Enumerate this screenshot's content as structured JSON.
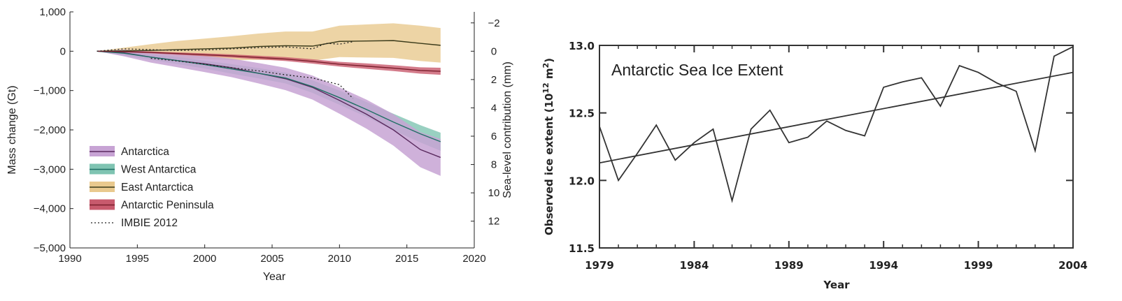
{
  "chart_data": [
    {
      "type": "line",
      "title": "",
      "xlabel": "Year",
      "ylabel": "Mass change (Gt)",
      "ylabel_right": "Sea-level contribution (mm)",
      "xlim": [
        1990,
        2020
      ],
      "ylim": [
        -5000,
        1000
      ],
      "x_ticks": [
        1990,
        1995,
        2000,
        2005,
        2010,
        2015,
        2020
      ],
      "y_ticks": [
        1000,
        0,
        -1000,
        -2000,
        -3000,
        -4000,
        -5000
      ],
      "x_tick_labels": [
        "1990",
        "1995",
        "2000",
        "2005",
        "2010",
        "2015",
        "2020"
      ],
      "y_tick_labels": [
        "1,000",
        "0",
        "−1,000",
        "−2,000",
        "−3,000",
        "−4,000",
        "−5,000"
      ],
      "right_ticks": [
        -2,
        0,
        2,
        4,
        6,
        8,
        10,
        12
      ],
      "right_tick_labels": [
        "−2",
        "0",
        "2",
        "4",
        "6",
        "8",
        "10",
        "12"
      ],
      "right_axis_gt_per_mm": -360,
      "grid": false,
      "legend_position": "bottom-left",
      "series": [
        {
          "name": "Antarctica",
          "color": "#5a2a5e",
          "band_color": "#c7a3d4",
          "x": [
            1992,
            1994,
            1996,
            1998,
            2000,
            2002,
            2004,
            2006,
            2008,
            2010,
            2012,
            2014,
            2016,
            2017.5
          ],
          "values": [
            0,
            -40,
            -150,
            -240,
            -320,
            -420,
            -560,
            -700,
            -920,
            -1250,
            -1600,
            -2000,
            -2500,
            -2700
          ],
          "band": [
            [
              0,
              0
            ],
            [
              40,
              -130
            ],
            [
              -10,
              -290
            ],
            [
              -70,
              -410
            ],
            [
              -120,
              -530
            ],
            [
              -190,
              -660
            ],
            [
              -300,
              -820
            ],
            [
              -420,
              -990
            ],
            [
              -620,
              -1230
            ],
            [
              -920,
              -1590
            ],
            [
              -1230,
              -1970
            ],
            [
              -1600,
              -2400
            ],
            [
              -2060,
              -2950
            ],
            [
              -2230,
              -3170
            ]
          ]
        },
        {
          "name": "West Antarctica",
          "color": "#1f6f64",
          "band_color": "#7fc4b2",
          "x": [
            1992,
            1994,
            1996,
            1998,
            2000,
            2002,
            2004,
            2006,
            2008,
            2010,
            2012,
            2014,
            2016,
            2017.5
          ],
          "values": [
            0,
            -50,
            -150,
            -240,
            -340,
            -450,
            -560,
            -680,
            -900,
            -1180,
            -1480,
            -1800,
            -2100,
            -2300
          ],
          "band": [
            [
              0,
              0
            ],
            [
              10,
              -110
            ],
            [
              -80,
              -220
            ],
            [
              -150,
              -330
            ],
            [
              -240,
              -440
            ],
            [
              -330,
              -570
            ],
            [
              -430,
              -690
            ],
            [
              -540,
              -820
            ],
            [
              -740,
              -1060
            ],
            [
              -1000,
              -1360
            ],
            [
              -1290,
              -1670
            ],
            [
              -1590,
              -2010
            ],
            [
              -1880,
              -2320
            ],
            [
              -2070,
              -2530
            ]
          ]
        },
        {
          "name": "East Antarctica",
          "color": "#3a3a1a",
          "band_color": "#e9c98e",
          "x": [
            1992,
            1994,
            1996,
            1998,
            2000,
            2002,
            2004,
            2006,
            2008,
            2010,
            2012,
            2014,
            2016,
            2017.5
          ],
          "values": [
            0,
            10,
            20,
            40,
            60,
            80,
            120,
            140,
            130,
            250,
            260,
            270,
            200,
            150
          ],
          "band": [
            [
              0,
              0
            ],
            [
              90,
              -70
            ],
            [
              180,
              -140
            ],
            [
              260,
              -180
            ],
            [
              320,
              -200
            ],
            [
              380,
              -230
            ],
            [
              450,
              -220
            ],
            [
              500,
              -220
            ],
            [
              500,
              -240
            ],
            [
              650,
              -150
            ],
            [
              680,
              -160
            ],
            [
              710,
              -170
            ],
            [
              650,
              -250
            ],
            [
              590,
              -290
            ]
          ]
        },
        {
          "name": "Antarctic Peninsula",
          "color": "#7a1e2c",
          "band_color": "#c85a6d",
          "x": [
            1992,
            1994,
            1996,
            1998,
            2000,
            2002,
            2004,
            2006,
            2008,
            2010,
            2012,
            2014,
            2016,
            2017.5
          ],
          "values": [
            0,
            -10,
            -30,
            -60,
            -90,
            -120,
            -160,
            -200,
            -260,
            -330,
            -380,
            -430,
            -490,
            -510
          ],
          "band": [
            [
              0,
              0
            ],
            [
              10,
              -30
            ],
            [
              -5,
              -55
            ],
            [
              -30,
              -90
            ],
            [
              -55,
              -125
            ],
            [
              -80,
              -160
            ],
            [
              -115,
              -205
            ],
            [
              -150,
              -250
            ],
            [
              -205,
              -315
            ],
            [
              -270,
              -390
            ],
            [
              -310,
              -450
            ],
            [
              -355,
              -505
            ],
            [
              -410,
              -570
            ],
            [
              -420,
              -600
            ]
          ]
        },
        {
          "name": "IMBIE 2012",
          "color": "#222222",
          "dash": "2,3",
          "x": [
            1992,
            1994,
            1996,
            1998,
            2000,
            2002,
            2004,
            2006,
            2008,
            2009,
            2010,
            2011
          ],
          "values": [
            0,
            60,
            40,
            20,
            30,
            60,
            90,
            110,
            60,
            200,
            180,
            240
          ]
        },
        {
          "name": "",
          "color": "#222222",
          "dash": "2,3",
          "legend": false,
          "x": [
            1996,
            1998,
            2000,
            2002,
            2004,
            2006,
            2008,
            2010,
            2011
          ],
          "values": [
            -180,
            -250,
            -330,
            -420,
            -500,
            -600,
            -680,
            -850,
            -1200
          ]
        }
      ]
    },
    {
      "type": "line",
      "title": "Antarctic Sea Ice Extent",
      "xlabel": "Year",
      "ylabel": "Observed ice extent (10",
      "ylabel_sup": "12",
      "ylabel_end": " m",
      "ylabel_sup2": "2",
      "ylabel_close": ")",
      "xlim": [
        1979,
        2004
      ],
      "ylim": [
        11.5,
        13.0
      ],
      "x_ticks": [
        1979,
        1984,
        1989,
        1994,
        1999,
        2004
      ],
      "y_ticks": [
        11.5,
        12.0,
        12.5,
        13.0
      ],
      "x_tick_labels": [
        "1979",
        "1984",
        "1989",
        "1994",
        "1999",
        "2004"
      ],
      "y_tick_labels": [
        "11.5",
        "12.0",
        "12.5",
        "13.0"
      ],
      "grid": false,
      "series": [
        {
          "name": "",
          "color": "#333333",
          "x": [
            1979,
            1980,
            1981,
            1982,
            1983,
            1984,
            1985,
            1986,
            1987,
            1988,
            1989,
            1990,
            1991,
            1992,
            1993,
            1994,
            1995,
            1996,
            1997,
            1998,
            1999,
            2000,
            2001,
            2002,
            2003,
            2004
          ],
          "values": [
            12.4,
            12.0,
            12.2,
            12.41,
            12.15,
            12.28,
            12.38,
            11.85,
            12.38,
            12.52,
            12.28,
            12.32,
            12.44,
            12.37,
            12.33,
            12.69,
            12.73,
            12.76,
            12.55,
            12.85,
            12.8,
            12.72,
            12.66,
            12.22,
            12.92,
            12.99
          ]
        },
        {
          "name": "",
          "color": "#333333",
          "kind": "trend",
          "x": [
            1979,
            2004
          ],
          "values": [
            12.13,
            12.8
          ]
        }
      ]
    }
  ]
}
